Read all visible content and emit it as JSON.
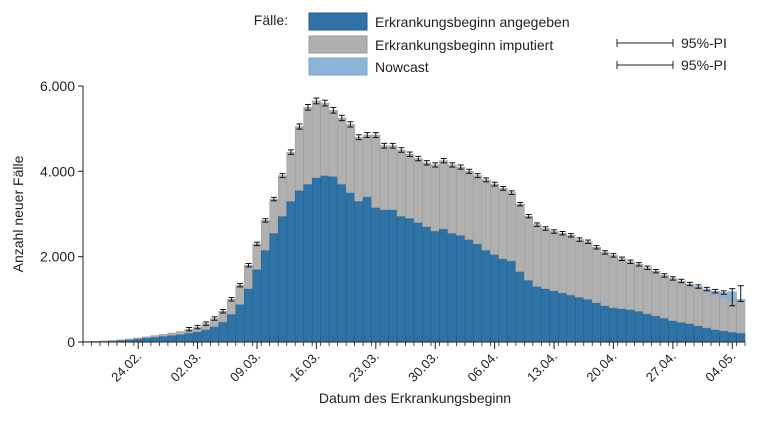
{
  "chart_data": {
    "type": "bar",
    "stacked": true,
    "legend_title": "Fälle:",
    "legend_placement": "top",
    "xlabel": "Datum des Erkrankungsbeginn",
    "ylabel": "Anzahl neuer Fälle",
    "ylim": [
      0,
      6000
    ],
    "yticks": [
      0,
      2000,
      4000,
      6000
    ],
    "ytick_labels": [
      "0",
      "2.000",
      "4.000",
      "6.000"
    ],
    "grid": false,
    "x_start": "18.02.",
    "x_end": "05.05.",
    "xtick_labels": [
      "24.02.",
      "02.03.",
      "09.03.",
      "16.03.",
      "23.03.",
      "30.03.",
      "06.04.",
      "13.04.",
      "20.04.",
      "27.04.",
      "04.05."
    ],
    "pi_legend_label": "95%-PI",
    "series": [
      {
        "name": "Erkrankungsbeginn angegeben",
        "color": "#2f73a6",
        "values": [
          8,
          12,
          20,
          28,
          40,
          55,
          75,
          95,
          115,
          135,
          155,
          175,
          210,
          240,
          290,
          360,
          470,
          650,
          880,
          1250,
          1700,
          2150,
          2550,
          2950,
          3300,
          3550,
          3700,
          3850,
          3900,
          3880,
          3700,
          3500,
          3300,
          3400,
          3150,
          3100,
          3100,
          2950,
          2900,
          2800,
          2700,
          2600,
          2650,
          2550,
          2500,
          2400,
          2300,
          2150,
          2050,
          1950,
          1900,
          1650,
          1450,
          1300,
          1250,
          1200,
          1150,
          1100,
          1050,
          1000,
          920,
          850,
          800,
          780,
          760,
          720,
          660,
          610,
          560,
          500,
          460,
          430,
          380,
          330,
          290,
          260,
          230,
          210
        ]
      },
      {
        "name": "Erkrankungsbeginn imputiert",
        "color": "#b0b0b0",
        "values": [
          2,
          3,
          5,
          7,
          10,
          15,
          20,
          25,
          35,
          45,
          55,
          70,
          90,
          110,
          140,
          190,
          250,
          350,
          450,
          550,
          600,
          700,
          800,
          950,
          1150,
          1500,
          1800,
          1800,
          1700,
          1550,
          1550,
          1600,
          1500,
          1450,
          1700,
          1500,
          1500,
          1550,
          1500,
          1500,
          1500,
          1550,
          1600,
          1600,
          1600,
          1600,
          1600,
          1650,
          1650,
          1650,
          1600,
          1580,
          1500,
          1450,
          1410,
          1390,
          1400,
          1400,
          1350,
          1350,
          1300,
          1250,
          1230,
          1170,
          1120,
          1100,
          1080,
          1050,
          1000,
          990,
          970,
          930,
          900,
          870,
          830,
          790,
          750,
          740
        ]
      },
      {
        "name": "Nowcast",
        "color": "#8db4d8",
        "values": [
          0,
          0,
          0,
          0,
          0,
          0,
          0,
          0,
          0,
          0,
          0,
          0,
          0,
          0,
          0,
          0,
          0,
          0,
          0,
          0,
          0,
          0,
          0,
          0,
          0,
          0,
          0,
          0,
          0,
          0,
          0,
          0,
          0,
          0,
          0,
          0,
          0,
          0,
          0,
          0,
          0,
          0,
          0,
          0,
          0,
          0,
          0,
          0,
          0,
          0,
          0,
          0,
          0,
          0,
          0,
          0,
          0,
          0,
          0,
          0,
          0,
          0,
          0,
          0,
          0,
          0,
          0,
          0,
          0,
          0,
          0,
          0,
          20,
          40,
          70,
          110,
          200,
          50
        ]
      }
    ],
    "pi_lower": [
      null,
      null,
      null,
      null,
      null,
      null,
      null,
      null,
      null,
      null,
      null,
      null,
      null,
      null,
      null,
      null,
      null,
      null,
      null,
      null,
      null,
      null,
      null,
      null,
      null,
      null,
      null,
      null,
      null,
      null,
      null,
      null,
      null,
      null,
      null,
      null,
      null,
      null,
      null,
      null,
      null,
      null,
      null,
      null,
      null,
      null,
      null,
      null,
      null,
      null,
      null,
      null,
      null,
      null,
      null,
      null,
      null,
      null,
      null,
      null,
      null,
      null,
      null,
      null,
      null,
      null,
      null,
      null,
      null,
      null,
      null,
      null,
      null,
      null,
      null,
      null,
      850,
      950
    ],
    "pi_upper": [
      null,
      null,
      null,
      null,
      null,
      null,
      null,
      null,
      null,
      null,
      null,
      null,
      null,
      null,
      null,
      null,
      null,
      null,
      null,
      null,
      null,
      null,
      null,
      null,
      null,
      null,
      null,
      null,
      null,
      null,
      null,
      null,
      null,
      null,
      null,
      null,
      null,
      null,
      null,
      null,
      null,
      null,
      null,
      null,
      null,
      null,
      null,
      null,
      null,
      null,
      null,
      null,
      null,
      null,
      null,
      null,
      null,
      null,
      null,
      null,
      null,
      null,
      null,
      null,
      null,
      null,
      null,
      null,
      null,
      null,
      null,
      null,
      null,
      null,
      null,
      null,
      1250,
      1320
    ]
  }
}
